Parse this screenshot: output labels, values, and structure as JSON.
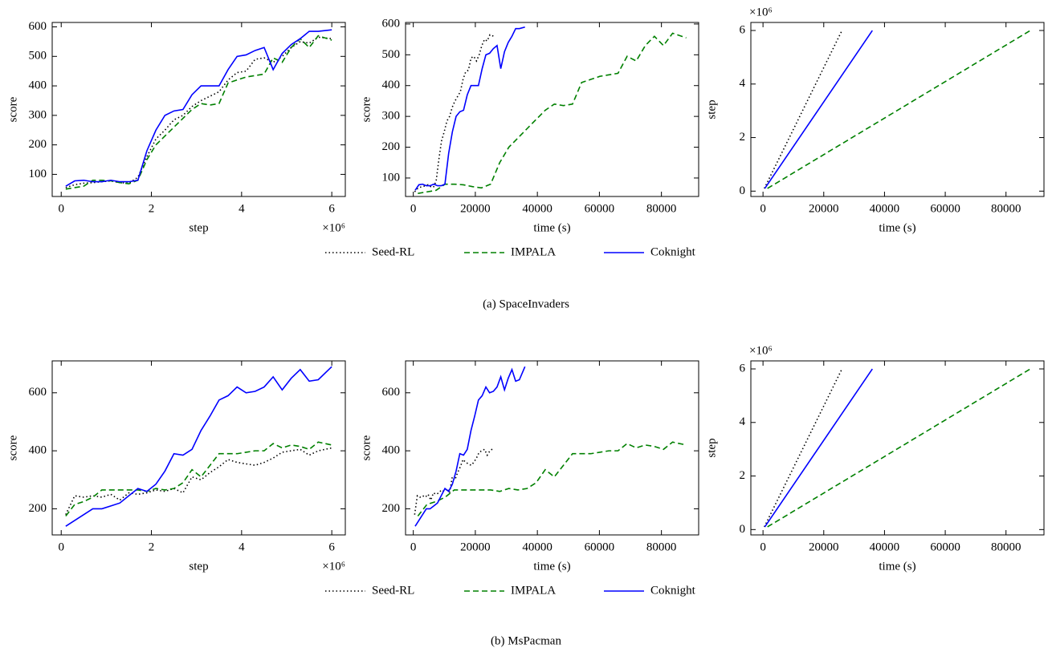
{
  "captions": [
    "(a) SpaceInvaders",
    "(b) MsPacman"
  ],
  "chart_data": [
    {
      "type": "line",
      "xlabel": "step",
      "ylabel": "score",
      "x_offset_label": "×10⁶",
      "xlim": [
        -0.2,
        6.3
      ],
      "ylim": [
        25,
        615
      ],
      "xticks": [
        0,
        2,
        4,
        6
      ],
      "yticks": [
        100,
        200,
        300,
        400,
        500,
        600
      ],
      "x": [
        0.1,
        0.3,
        0.5,
        0.7,
        0.9,
        1.1,
        1.3,
        1.5,
        1.7,
        1.9,
        2.1,
        2.3,
        2.5,
        2.7,
        2.9,
        3.1,
        3.3,
        3.5,
        3.7,
        3.9,
        4.1,
        4.3,
        4.5,
        4.7,
        4.9,
        5.1,
        5.3,
        5.5,
        5.7,
        6.0
      ],
      "series": [
        {
          "name": "Seed-RL",
          "color": "#000000",
          "linestyle": "dotted",
          "values": [
            55,
            65,
            70,
            72,
            75,
            78,
            72,
            70,
            90,
            160,
            220,
            250,
            285,
            300,
            330,
            350,
            365,
            380,
            420,
            445,
            450,
            490,
            495,
            480,
            500,
            530,
            550,
            545,
            565,
            560
          ]
        },
        {
          "name": "IMPALA",
          "color": "#008000",
          "linestyle": "dashed",
          "values": [
            50,
            55,
            60,
            80,
            80,
            78,
            72,
            68,
            80,
            150,
            200,
            230,
            260,
            290,
            320,
            340,
            335,
            340,
            410,
            420,
            430,
            435,
            440,
            495,
            480,
            530,
            560,
            530,
            570,
            555
          ]
        },
        {
          "name": "Coknight",
          "color": "#0000ff",
          "linestyle": "solid",
          "values": [
            60,
            78,
            80,
            75,
            75,
            80,
            75,
            75,
            80,
            180,
            250,
            300,
            315,
            320,
            370,
            400,
            400,
            400,
            455,
            500,
            505,
            520,
            530,
            455,
            510,
            540,
            560,
            585,
            585,
            590
          ]
        }
      ]
    },
    {
      "type": "line",
      "xlabel": "time (s)",
      "ylabel": "score",
      "xlim": [
        -2500,
        92000
      ],
      "ylim": [
        40,
        605
      ],
      "xticks": [
        0,
        20000,
        40000,
        60000,
        80000
      ],
      "yticks": [
        100,
        200,
        300,
        400,
        500,
        600
      ],
      "series": [
        {
          "name": "Seed-RL",
          "color": "#000000",
          "linestyle": "dotted",
          "x": [
            433,
            1300,
            2167,
            3033,
            3900,
            4767,
            5633,
            6500,
            7367,
            8233,
            9100,
            9967,
            10833,
            11700,
            12567,
            13433,
            14300,
            15167,
            16033,
            16900,
            17767,
            18633,
            19500,
            20367,
            21233,
            22100,
            22967,
            23833,
            24700,
            26000
          ],
          "values": [
            55,
            65,
            70,
            72,
            75,
            78,
            72,
            70,
            90,
            160,
            220,
            250,
            285,
            300,
            330,
            350,
            365,
            380,
            420,
            445,
            450,
            490,
            495,
            480,
            500,
            530,
            550,
            545,
            565,
            560
          ]
        },
        {
          "name": "IMPALA",
          "color": "#008000",
          "linestyle": "dashed",
          "x": [
            1467,
            4400,
            7333,
            10267,
            13200,
            16133,
            19067,
            22000,
            24933,
            27867,
            30800,
            33733,
            36667,
            39600,
            42533,
            45467,
            48400,
            51333,
            54267,
            57200,
            60133,
            63067,
            66000,
            68933,
            71867,
            74800,
            77733,
            80667,
            83600,
            88000
          ],
          "values": [
            50,
            55,
            60,
            80,
            80,
            78,
            72,
            68,
            80,
            150,
            200,
            230,
            260,
            290,
            320,
            340,
            335,
            340,
            410,
            420,
            430,
            435,
            440,
            495,
            480,
            530,
            560,
            530,
            570,
            555
          ]
        },
        {
          "name": "Coknight",
          "color": "#0000ff",
          "linestyle": "solid",
          "x": [
            600,
            1800,
            3000,
            4200,
            5400,
            6600,
            7800,
            9000,
            10200,
            11400,
            12600,
            13800,
            15000,
            16200,
            17400,
            18600,
            19800,
            21000,
            22200,
            23400,
            24600,
            25800,
            27000,
            28200,
            29400,
            30600,
            31800,
            33000,
            34200,
            36000
          ],
          "values": [
            60,
            78,
            80,
            75,
            75,
            80,
            75,
            75,
            80,
            180,
            250,
            300,
            315,
            320,
            370,
            400,
            400,
            400,
            455,
            500,
            505,
            520,
            530,
            455,
            510,
            540,
            560,
            585,
            585,
            590
          ]
        }
      ]
    },
    {
      "type": "line",
      "xlabel": "time (s)",
      "ylabel": "step",
      "y_offset_label": "×10⁶",
      "xlim": [
        -4000,
        92500
      ],
      "ylim": [
        -0.2,
        6.3
      ],
      "xticks": [
        0,
        20000,
        40000,
        60000,
        80000
      ],
      "yticks": [
        0,
        2,
        4,
        6
      ],
      "series": [
        {
          "name": "Seed-RL",
          "color": "#000000",
          "linestyle": "dotted",
          "x": [
            433,
            26000
          ],
          "values": [
            0.1,
            6.0
          ]
        },
        {
          "name": "IMPALA",
          "color": "#008000",
          "linestyle": "dashed",
          "x": [
            1467,
            88000
          ],
          "values": [
            0.1,
            6.0
          ]
        },
        {
          "name": "Coknight",
          "color": "#0000ff",
          "linestyle": "solid",
          "x": [
            600,
            36000
          ],
          "values": [
            0.1,
            6.0
          ]
        }
      ]
    },
    {
      "type": "line",
      "xlabel": "step",
      "ylabel": "score",
      "x_offset_label": "×10⁶",
      "xlim": [
        -0.2,
        6.3
      ],
      "ylim": [
        110,
        710
      ],
      "xticks": [
        0,
        2,
        4,
        6
      ],
      "yticks": [
        200,
        400,
        600
      ],
      "x": [
        0.1,
        0.3,
        0.5,
        0.7,
        0.9,
        1.1,
        1.3,
        1.5,
        1.7,
        1.9,
        2.1,
        2.3,
        2.5,
        2.7,
        2.9,
        3.1,
        3.3,
        3.5,
        3.7,
        3.9,
        4.1,
        4.3,
        4.5,
        4.7,
        4.9,
        5.1,
        5.3,
        5.5,
        5.7,
        6.0
      ],
      "series": [
        {
          "name": "Seed-RL",
          "color": "#000000",
          "linestyle": "dotted",
          "values": [
            180,
            245,
            240,
            245,
            240,
            250,
            230,
            255,
            250,
            255,
            265,
            260,
            270,
            255,
            310,
            300,
            325,
            345,
            370,
            360,
            355,
            350,
            360,
            375,
            395,
            400,
            405,
            385,
            400,
            410
          ]
        },
        {
          "name": "IMPALA",
          "color": "#008000",
          "linestyle": "dashed",
          "values": [
            175,
            215,
            225,
            240,
            265,
            265,
            265,
            265,
            265,
            260,
            270,
            265,
            270,
            290,
            335,
            310,
            350,
            390,
            390,
            390,
            395,
            400,
            400,
            425,
            410,
            420,
            415,
            405,
            430,
            420
          ]
        },
        {
          "name": "Coknight",
          "color": "#0000ff",
          "linestyle": "solid",
          "values": [
            140,
            160,
            180,
            200,
            200,
            210,
            220,
            245,
            270,
            260,
            285,
            330,
            390,
            385,
            405,
            470,
            520,
            575,
            590,
            620,
            600,
            605,
            620,
            655,
            610,
            650,
            680,
            640,
            645,
            690
          ]
        }
      ]
    },
    {
      "type": "line",
      "xlabel": "time (s)",
      "ylabel": "score",
      "xlim": [
        -2500,
        92000
      ],
      "ylim": [
        110,
        710
      ],
      "xticks": [
        0,
        20000,
        40000,
        60000,
        80000
      ],
      "yticks": [
        200,
        400,
        600
      ],
      "series": [
        {
          "name": "Seed-RL",
          "color": "#000000",
          "linestyle": "dotted",
          "x": [
            433,
            1300,
            2167,
            3033,
            3900,
            4767,
            5633,
            6500,
            7367,
            8233,
            9100,
            9967,
            10833,
            11700,
            12567,
            13433,
            14300,
            15167,
            16033,
            16900,
            17767,
            18633,
            19500,
            20367,
            21233,
            22100,
            22967,
            23833,
            24700,
            26000
          ],
          "values": [
            180,
            245,
            240,
            245,
            240,
            250,
            230,
            255,
            250,
            255,
            265,
            260,
            270,
            255,
            310,
            300,
            325,
            345,
            370,
            360,
            355,
            350,
            360,
            375,
            395,
            400,
            405,
            385,
            400,
            410
          ]
        },
        {
          "name": "IMPALA",
          "color": "#008000",
          "linestyle": "dashed",
          "x": [
            1467,
            4400,
            7333,
            10267,
            13200,
            16133,
            19067,
            22000,
            24933,
            27867,
            30800,
            33733,
            36667,
            39600,
            42533,
            45467,
            48400,
            51333,
            54267,
            57200,
            60133,
            63067,
            66000,
            68933,
            71867,
            74800,
            77733,
            80667,
            83600,
            88000
          ],
          "values": [
            175,
            215,
            225,
            240,
            265,
            265,
            265,
            265,
            265,
            260,
            270,
            265,
            270,
            290,
            335,
            310,
            350,
            390,
            390,
            390,
            395,
            400,
            400,
            425,
            410,
            420,
            415,
            405,
            430,
            420
          ]
        },
        {
          "name": "Coknight",
          "color": "#0000ff",
          "linestyle": "solid",
          "x": [
            600,
            1800,
            3000,
            4200,
            5400,
            6600,
            7800,
            9000,
            10200,
            11400,
            12600,
            13800,
            15000,
            16200,
            17400,
            18600,
            19800,
            21000,
            22200,
            23400,
            24600,
            25800,
            27000,
            28200,
            29400,
            30600,
            31800,
            33000,
            34200,
            36000
          ],
          "values": [
            140,
            160,
            180,
            200,
            200,
            210,
            220,
            245,
            270,
            260,
            285,
            330,
            390,
            385,
            405,
            470,
            520,
            575,
            590,
            620,
            600,
            605,
            620,
            655,
            610,
            650,
            680,
            640,
            645,
            690
          ]
        }
      ]
    },
    {
      "type": "line",
      "xlabel": "time (s)",
      "ylabel": "step",
      "y_offset_label": "×10⁶",
      "xlim": [
        -4000,
        92500
      ],
      "ylim": [
        -0.2,
        6.3
      ],
      "xticks": [
        0,
        20000,
        40000,
        60000,
        80000
      ],
      "yticks": [
        0,
        2,
        4,
        6
      ],
      "series": [
        {
          "name": "Seed-RL",
          "color": "#000000",
          "linestyle": "dotted",
          "x": [
            433,
            26000
          ],
          "values": [
            0.1,
            6.0
          ]
        },
        {
          "name": "IMPALA",
          "color": "#008000",
          "linestyle": "dashed",
          "x": [
            1467,
            88000
          ],
          "values": [
            0.1,
            6.0
          ]
        },
        {
          "name": "Coknight",
          "color": "#0000ff",
          "linestyle": "solid",
          "x": [
            600,
            36000
          ],
          "values": [
            0.1,
            6.0
          ]
        }
      ]
    }
  ]
}
